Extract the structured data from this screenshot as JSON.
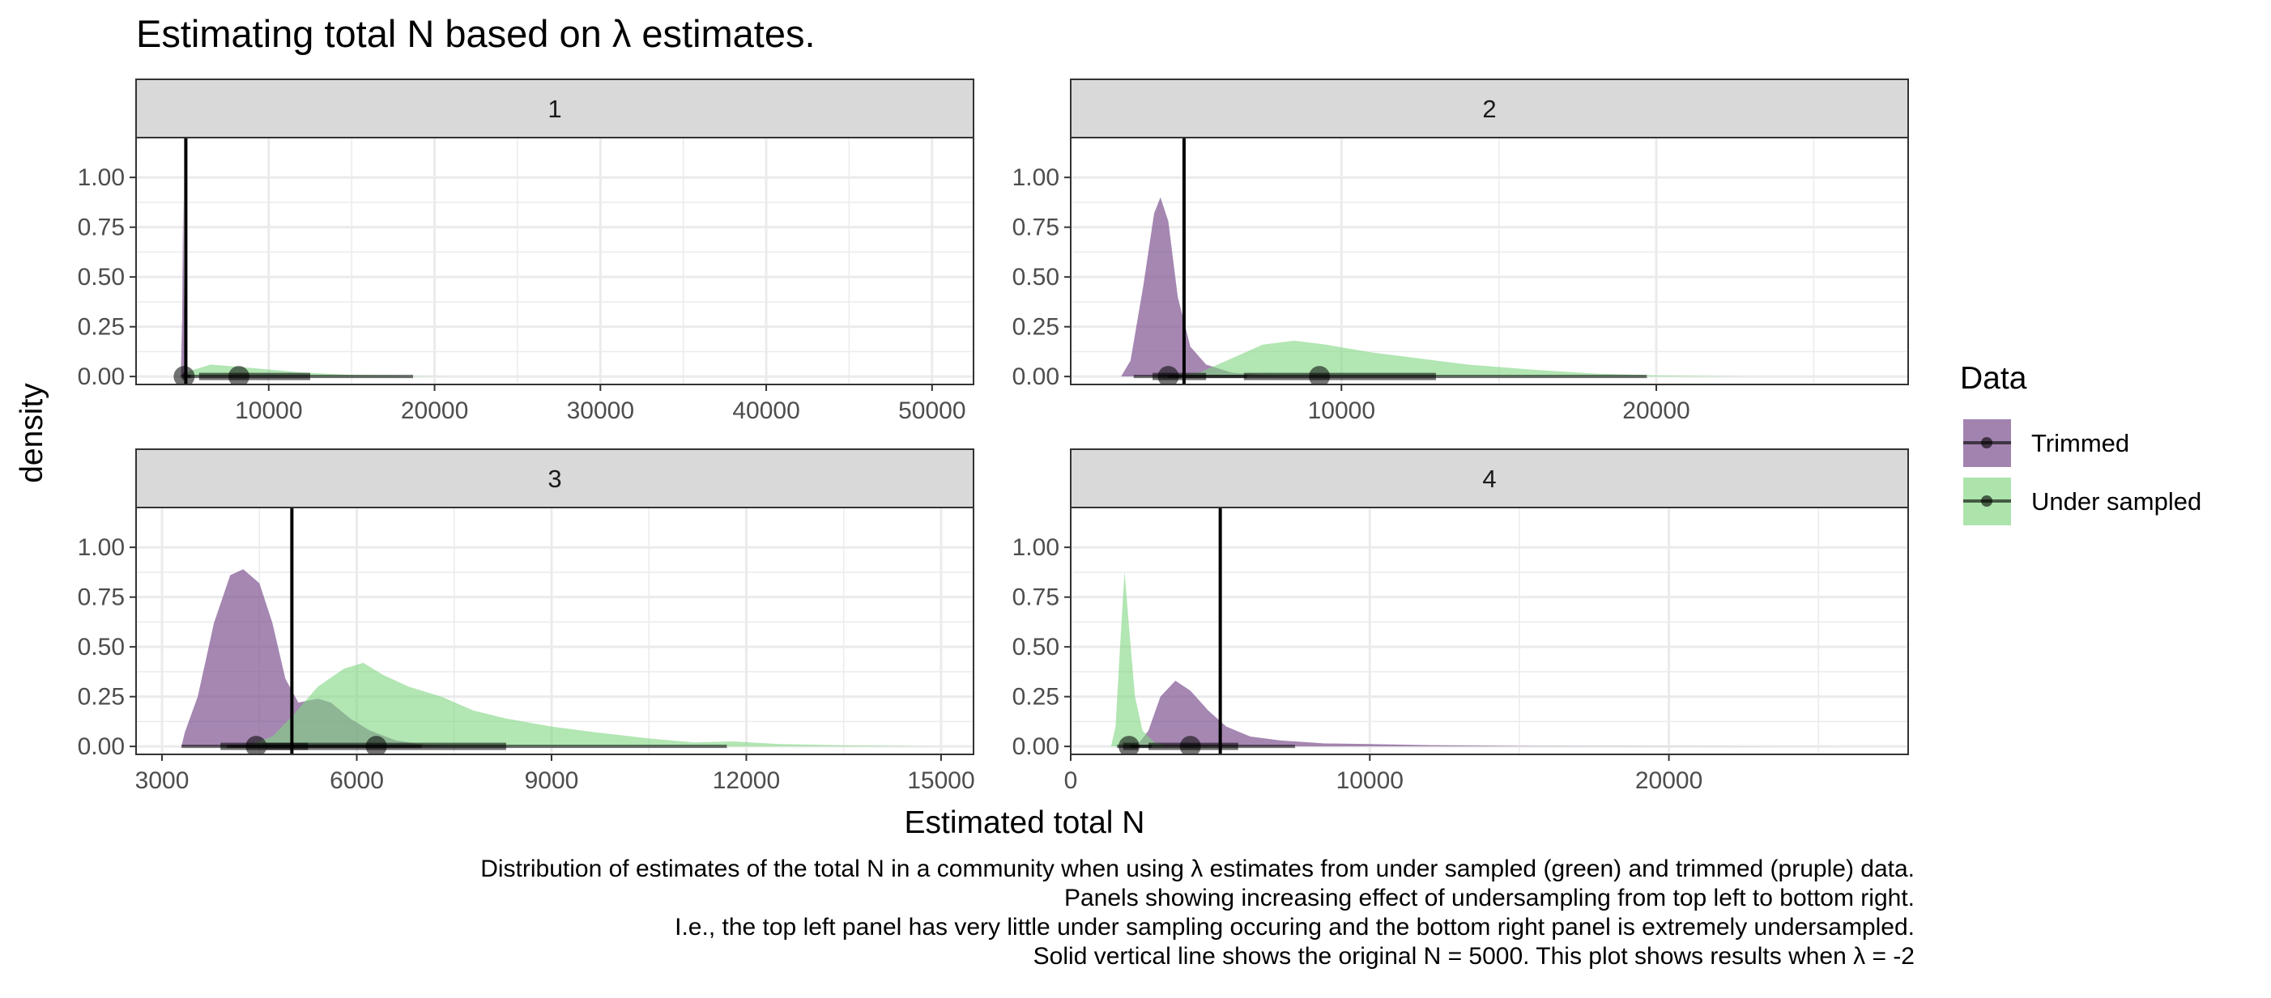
{
  "title": "Estimating total N based on λ estimates.",
  "caption": [
    "Distribution of estimates of the total N in a community when using λ estimates from under sampled (green) and trimmed (pruple) data.",
    "Panels showing increasing effect of undersampling from top left to bottom right.",
    "I.e., the top left panel has very little under sampling occuring and the bottom right panel is extremely undersampled.",
    "Solid vertical line shows the original N = 5000. This plot shows results when λ = -2"
  ],
  "colors": {
    "trimmed": "#7B4E8E",
    "under_sampled": "#7FD680",
    "strip_bg": "#D9D9D9",
    "grid": "#EBEBEB",
    "vline": "#000000"
  },
  "chart_data": {
    "type": "area",
    "xlabel": "Estimated total N",
    "ylabel": "density",
    "legend": {
      "title": "Data",
      "placement": "right",
      "entries": [
        "Trimmed",
        "Under sampled"
      ]
    },
    "reference_line_x": 5000,
    "grid": true,
    "panels": [
      {
        "label": "1",
        "xlim": [
          2000,
          52500
        ],
        "ylim": [
          -0.04,
          1.2
        ],
        "xticks": [
          10000,
          20000,
          30000,
          40000,
          50000
        ],
        "xtick_labels": [
          "10000",
          "20000",
          "30000",
          "40000",
          "50000"
        ],
        "yticks": [
          0,
          0.25,
          0.5,
          0.75,
          1
        ],
        "ytick_labels": [
          "0.00",
          "0.25",
          "0.50",
          "0.75",
          "1.00"
        ],
        "series": [
          {
            "name": "Trimmed",
            "color_key": "trimmed",
            "curve": [
              [
                4700,
                0
              ],
              [
                4780,
                0.3
              ],
              [
                4840,
                0.9
              ],
              [
                4900,
                0.35
              ],
              [
                4960,
                0.08
              ],
              [
                5100,
                0.02
              ],
              [
                5400,
                0
              ]
            ],
            "point": 4900,
            "thick": [
              4800,
              5000
            ],
            "thin": [
              4700,
              5300
            ]
          },
          {
            "name": "Under sampled",
            "color_key": "under_sampled",
            "curve": [
              [
                4800,
                0
              ],
              [
                5300,
                0.03
              ],
              [
                6500,
                0.06
              ],
              [
                8000,
                0.05
              ],
              [
                10000,
                0.035
              ],
              [
                12000,
                0.02
              ],
              [
                15000,
                0.008
              ],
              [
                19000,
                0.002
              ],
              [
                21000,
                0
              ]
            ],
            "point": 8200,
            "thick": [
              5800,
              12500
            ],
            "thin": [
              5000,
              18700
            ]
          }
        ]
      },
      {
        "label": "2",
        "xlim": [
          1400,
          28000
        ],
        "ylim": [
          -0.04,
          1.2
        ],
        "xticks": [
          10000,
          20000
        ],
        "xtick_labels": [
          "10000",
          "20000"
        ],
        "yticks": [
          0,
          0.25,
          0.5,
          0.75,
          1
        ],
        "ytick_labels": [
          "0.00",
          "0.25",
          "0.50",
          "0.75",
          "1.00"
        ],
        "series": [
          {
            "name": "Trimmed",
            "color_key": "trimmed",
            "curve": [
              [
                3000,
                0
              ],
              [
                3300,
                0.08
              ],
              [
                3700,
                0.45
              ],
              [
                4050,
                0.82
              ],
              [
                4250,
                0.9
              ],
              [
                4500,
                0.78
              ],
              [
                4800,
                0.4
              ],
              [
                5200,
                0.15
              ],
              [
                5700,
                0.06
              ],
              [
                6500,
                0.02
              ],
              [
                8000,
                0
              ]
            ],
            "point": 4500,
            "thick": [
              4000,
              5700
            ],
            "thin": [
              3400,
              7000
            ]
          },
          {
            "name": "Under sampled",
            "color_key": "under_sampled",
            "curve": [
              [
                4500,
                0
              ],
              [
                5500,
                0.02
              ],
              [
                6500,
                0.09
              ],
              [
                7500,
                0.16
              ],
              [
                8500,
                0.18
              ],
              [
                9500,
                0.16
              ],
              [
                11000,
                0.12
              ],
              [
                12500,
                0.09
              ],
              [
                14000,
                0.06
              ],
              [
                16000,
                0.035
              ],
              [
                18000,
                0.015
              ],
              [
                20000,
                0.005
              ],
              [
                23000,
                0
              ]
            ],
            "point": 9300,
            "thick": [
              6900,
              13000
            ],
            "thin": [
              4500,
              19700
            ]
          }
        ]
      },
      {
        "label": "3",
        "xlim": [
          2600,
          15500
        ],
        "ylim": [
          -0.04,
          1.2
        ],
        "xticks": [
          3000,
          6000,
          9000,
          12000,
          15000
        ],
        "xtick_labels": [
          "3000",
          "6000",
          "9000",
          "12000",
          "15000"
        ],
        "yticks": [
          0,
          0.25,
          0.5,
          0.75,
          1
        ],
        "ytick_labels": [
          "0.00",
          "0.25",
          "0.50",
          "0.75",
          "1.00"
        ],
        "series": [
          {
            "name": "Trimmed",
            "color_key": "trimmed",
            "curve": [
              [
                3300,
                0
              ],
              [
                3350,
                0.07
              ],
              [
                3550,
                0.25
              ],
              [
                3800,
                0.62
              ],
              [
                4050,
                0.86
              ],
              [
                4250,
                0.89
              ],
              [
                4500,
                0.82
              ],
              [
                4700,
                0.62
              ],
              [
                4900,
                0.34
              ],
              [
                5100,
                0.22
              ],
              [
                5400,
                0.24
              ],
              [
                5600,
                0.22
              ],
              [
                5900,
                0.14
              ],
              [
                6200,
                0.08
              ],
              [
                6600,
                0.03
              ],
              [
                7000,
                0.01
              ],
              [
                7400,
                0
              ]
            ],
            "point": 4450,
            "thick": [
              3900,
              5250
            ],
            "thin": [
              3300,
              7000
            ]
          },
          {
            "name": "Under sampled",
            "color_key": "under_sampled",
            "curve": [
              [
                4300,
                0
              ],
              [
                4700,
                0.05
              ],
              [
                5000,
                0.15
              ],
              [
                5400,
                0.3
              ],
              [
                5800,
                0.39
              ],
              [
                6100,
                0.42
              ],
              [
                6400,
                0.36
              ],
              [
                6800,
                0.3
              ],
              [
                7300,
                0.25
              ],
              [
                7800,
                0.18
              ],
              [
                8300,
                0.14
              ],
              [
                9000,
                0.1
              ],
              [
                9700,
                0.07
              ],
              [
                10500,
                0.04
              ],
              [
                11200,
                0.02
              ],
              [
                11800,
                0.025
              ],
              [
                12500,
                0.012
              ],
              [
                13500,
                0.005
              ],
              [
                15000,
                0
              ]
            ],
            "point": 6300,
            "thick": [
              4600,
              8300
            ],
            "thin": [
              4000,
              11700
            ]
          }
        ]
      },
      {
        "label": "4",
        "xlim": [
          0,
          28000
        ],
        "ylim": [
          -0.04,
          1.2
        ],
        "xticks": [
          0,
          10000,
          20000
        ],
        "xtick_labels": [
          "0",
          "10000",
          "20000"
        ],
        "yticks": [
          0,
          0.25,
          0.5,
          0.75,
          1
        ],
        "ytick_labels": [
          "0.00",
          "0.25",
          "0.50",
          "0.75",
          "1.00"
        ],
        "series": [
          {
            "name": "Trimmed",
            "color_key": "trimmed",
            "curve": [
              [
                2200,
                0
              ],
              [
                2600,
                0.08
              ],
              [
                3000,
                0.25
              ],
              [
                3500,
                0.33
              ],
              [
                4000,
                0.28
              ],
              [
                4600,
                0.18
              ],
              [
                5200,
                0.1
              ],
              [
                6000,
                0.05
              ],
              [
                7000,
                0.03
              ],
              [
                8500,
                0.015
              ],
              [
                10000,
                0.012
              ],
              [
                12000,
                0.006
              ],
              [
                15000,
                0.002
              ],
              [
                27000,
                0
              ]
            ],
            "point": 4000,
            "thick": [
              2600,
              5600
            ],
            "thin": [
              2000,
              7500
            ]
          },
          {
            "name": "Under sampled",
            "color_key": "under_sampled",
            "curve": [
              [
                1350,
                0
              ],
              [
                1500,
                0.1
              ],
              [
                1650,
                0.5
              ],
              [
                1800,
                0.88
              ],
              [
                1950,
                0.6
              ],
              [
                2150,
                0.25
              ],
              [
                2400,
                0.08
              ],
              [
                2800,
                0.02
              ],
              [
                3300,
                0
              ]
            ],
            "point": 1950,
            "thick": [
              1750,
              2250
            ],
            "thin": [
              1550,
              2700
            ]
          }
        ]
      }
    ]
  }
}
